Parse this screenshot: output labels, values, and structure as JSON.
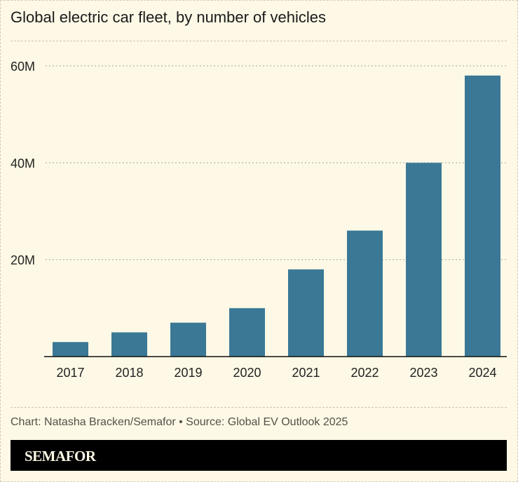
{
  "chart_data": {
    "type": "bar",
    "title": "Global electric car fleet, by number of vehicles",
    "categories": [
      "2017",
      "2018",
      "2019",
      "2020",
      "2021",
      "2022",
      "2023",
      "2024"
    ],
    "values": [
      3,
      5,
      7,
      10,
      18,
      26,
      40,
      58
    ],
    "unit": "M",
    "ylim": [
      0,
      60
    ],
    "yticks": [
      20,
      40,
      60
    ],
    "ytick_labels": [
      "20M",
      "40M",
      "60M"
    ],
    "grid": true,
    "bar_color": "#3a7896"
  },
  "footer": {
    "credit": "Chart: Natasha Bracken/Semafor  • Source: Global EV Outlook 2025",
    "brand": "SEMAFOR"
  }
}
